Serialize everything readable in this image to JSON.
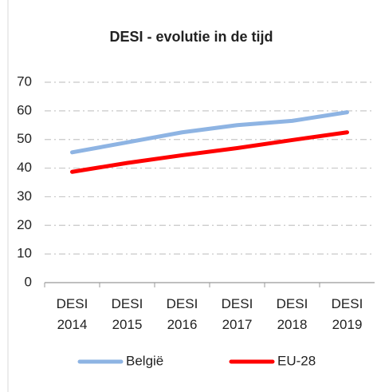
{
  "chart_data": {
    "type": "line",
    "title": "DESI - evolutie in de tijd",
    "categories": [
      "DESI 2014",
      "DESI 2015",
      "DESI 2016",
      "DESI 2017",
      "DESI 2018",
      "DESI 2019"
    ],
    "series": [
      {
        "name": "België",
        "color": "#8eb4e3",
        "values": [
          45.5,
          49,
          52.5,
          55,
          56.5,
          59.5
        ]
      },
      {
        "name": "EU-28",
        "color": "#ff0000",
        "values": [
          38.7,
          41.8,
          44.5,
          47,
          49.8,
          52.5
        ]
      }
    ],
    "ylim": [
      0,
      70
    ],
    "yticks": [
      0,
      10,
      20,
      30,
      40,
      50,
      60,
      70
    ],
    "grid": true,
    "legend": "bottom"
  }
}
